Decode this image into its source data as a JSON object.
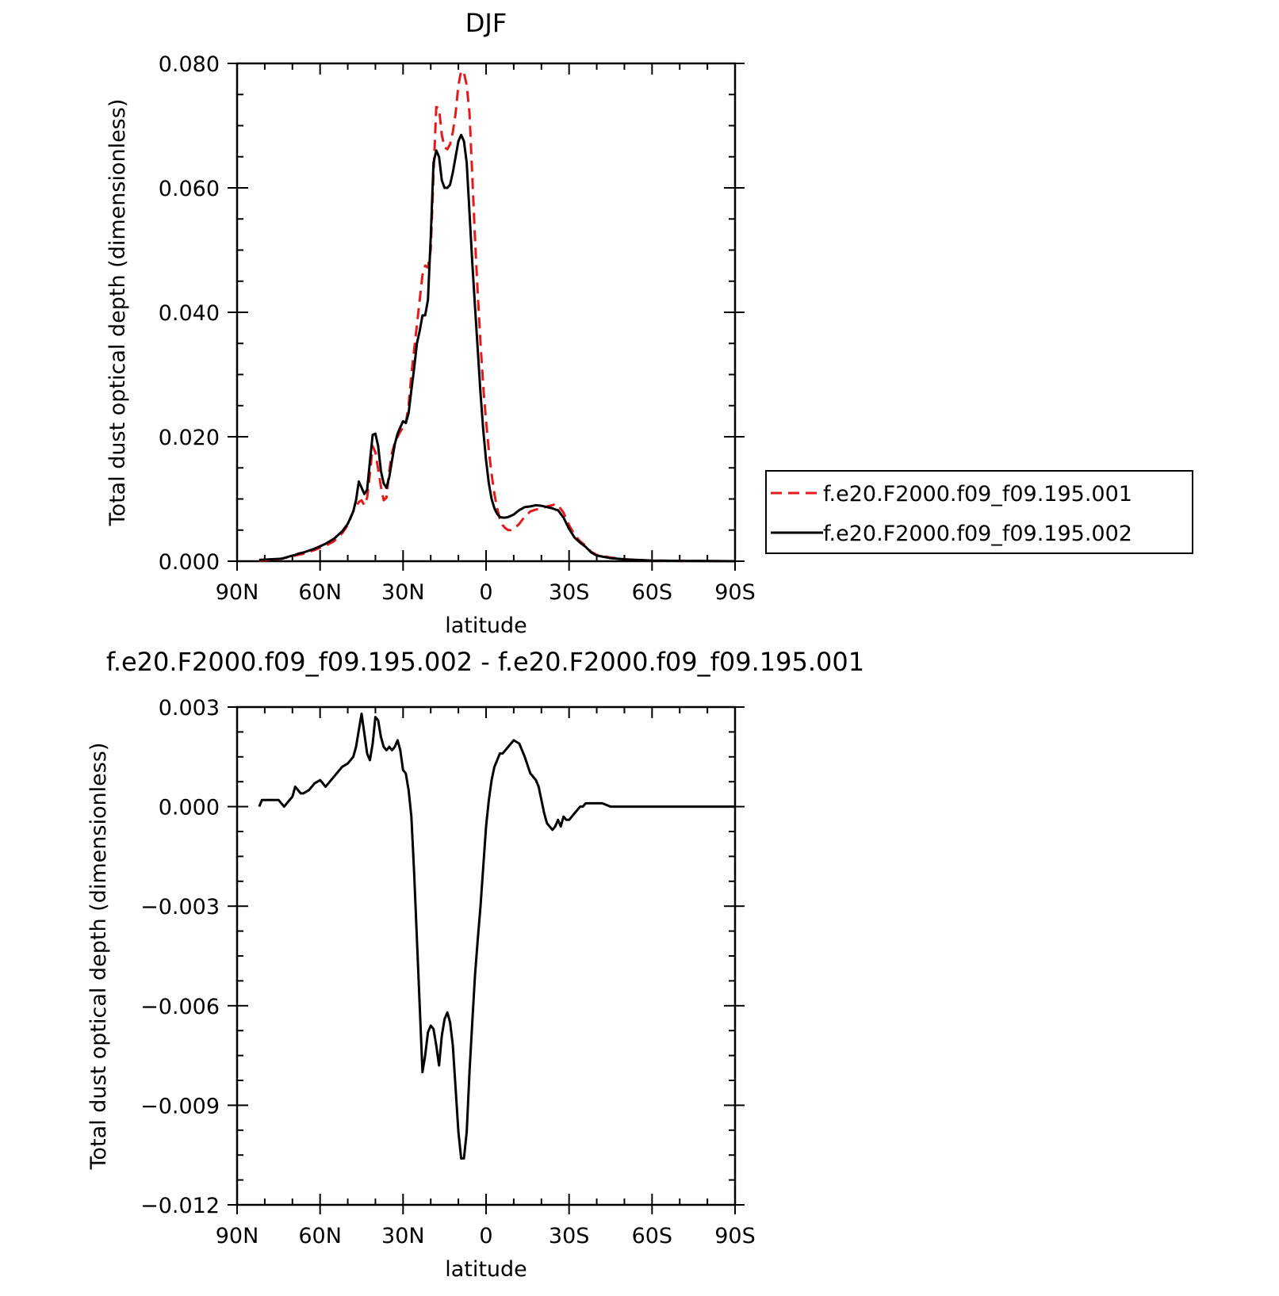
{
  "chart_data": [
    {
      "type": "line",
      "title": "DJF",
      "xlabel": "latitude",
      "ylabel": "Total dust optical depth (dimensionless)",
      "xlim": [
        90,
        -90
      ],
      "ylim": [
        0,
        0.08
      ],
      "xticks": [
        {
          "value": 90,
          "label": "90N"
        },
        {
          "value": 60,
          "label": "60N"
        },
        {
          "value": 30,
          "label": "30N"
        },
        {
          "value": 0,
          "label": "0"
        },
        {
          "value": -30,
          "label": "30S"
        },
        {
          "value": -60,
          "label": "60S"
        },
        {
          "value": -90,
          "label": "90S"
        }
      ],
      "yticks": [
        {
          "value": 0,
          "label": "0.000"
        },
        {
          "value": 0.02,
          "label": "0.020"
        },
        {
          "value": 0.04,
          "label": "0.040"
        },
        {
          "value": 0.06,
          "label": "0.060"
        },
        {
          "value": 0.08,
          "label": "0.080"
        }
      ],
      "legend": "right",
      "series": [
        {
          "name": "f.e20.F2000.f09_f09.195.001",
          "color": "#e41a1c",
          "dash": "dashed",
          "x": [
            82,
            78,
            74,
            70,
            66,
            62,
            58,
            55,
            52,
            50,
            48,
            46,
            45,
            44,
            43,
            42,
            41,
            40,
            38,
            37,
            36,
            35,
            34,
            33,
            32,
            31,
            30,
            29,
            28,
            27,
            26,
            25,
            24,
            23,
            22,
            21,
            20,
            19,
            18,
            17,
            16,
            15,
            14,
            13,
            12,
            11,
            10,
            9,
            8,
            7,
            6,
            5,
            4,
            3,
            2,
            1,
            0,
            -1,
            -2,
            -3,
            -4,
            -5,
            -6,
            -7,
            -8,
            -9,
            -10,
            -12,
            -14,
            -16,
            -18,
            -20,
            -22,
            -24,
            -25,
            -26,
            -28,
            -30,
            -32,
            -34,
            -36,
            -38,
            -40,
            -45,
            -50,
            -60,
            -70,
            -80,
            -90
          ],
          "y": [
            0.0001,
            0.0002,
            0.0004,
            0.0008,
            0.0012,
            0.0018,
            0.0025,
            0.0032,
            0.0045,
            0.0058,
            0.008,
            0.0095,
            0.0098,
            0.009,
            0.0102,
            0.014,
            0.0185,
            0.0175,
            0.012,
            0.0098,
            0.0102,
            0.0145,
            0.0175,
            0.019,
            0.02,
            0.0208,
            0.0215,
            0.0222,
            0.025,
            0.03,
            0.034,
            0.038,
            0.042,
            0.046,
            0.0475,
            0.0472,
            0.05,
            0.062,
            0.073,
            0.0728,
            0.0685,
            0.0665,
            0.0662,
            0.067,
            0.069,
            0.072,
            0.0765,
            0.0788,
            0.0785,
            0.0765,
            0.072,
            0.062,
            0.052,
            0.043,
            0.035,
            0.028,
            0.0225,
            0.0178,
            0.014,
            0.0108,
            0.0085,
            0.0068,
            0.0058,
            0.0053,
            0.005,
            0.005,
            0.0052,
            0.006,
            0.0072,
            0.008,
            0.0083,
            0.0085,
            0.0088,
            0.009,
            0.0092,
            0.009,
            0.0078,
            0.0058,
            0.0042,
            0.0032,
            0.0025,
            0.0015,
            0.001,
            0.0006,
            0.0003,
            0.0001,
            5e-05,
            2e-05,
            0.0
          ]
        },
        {
          "name": "f.e20.F2000.f09_f09.195.002",
          "color": "#000000",
          "dash": "solid",
          "x": [
            82,
            78,
            74,
            70,
            69,
            68,
            66,
            62,
            58,
            55,
            52,
            50,
            48,
            47,
            46,
            45,
            44,
            43,
            42,
            41,
            40,
            39,
            38,
            37,
            36,
            35,
            34,
            33,
            32,
            31,
            30,
            29,
            28,
            27,
            26,
            25,
            24,
            23,
            22,
            21,
            20,
            19,
            18,
            17,
            16,
            15,
            14,
            13,
            12,
            11,
            10,
            9,
            8,
            7,
            6,
            5,
            4,
            3,
            2,
            1,
            0,
            -1,
            -2,
            -3,
            -4,
            -5,
            -6,
            -7,
            -8,
            -10,
            -12,
            -14,
            -16,
            -18,
            -20,
            -22,
            -24,
            -25,
            -26,
            -28,
            -30,
            -32,
            -34,
            -36,
            -38,
            -40,
            -45,
            -50,
            -60,
            -70,
            -80,
            -90
          ],
          "y": [
            0.0002,
            0.0003,
            0.0004,
            0.0009,
            0.001,
            0.0012,
            0.0014,
            0.002,
            0.0028,
            0.0036,
            0.0048,
            0.006,
            0.008,
            0.0098,
            0.0128,
            0.0118,
            0.0108,
            0.0115,
            0.016,
            0.0203,
            0.0205,
            0.0185,
            0.0145,
            0.0125,
            0.0118,
            0.0135,
            0.0162,
            0.0188,
            0.0205,
            0.0215,
            0.0225,
            0.0222,
            0.0238,
            0.0275,
            0.031,
            0.035,
            0.037,
            0.0395,
            0.0395,
            0.042,
            0.052,
            0.064,
            0.066,
            0.065,
            0.0612,
            0.06,
            0.06,
            0.0605,
            0.0625,
            0.065,
            0.0675,
            0.0685,
            0.0675,
            0.064,
            0.056,
            0.048,
            0.041,
            0.034,
            0.027,
            0.021,
            0.0162,
            0.0125,
            0.01,
            0.0085,
            0.0076,
            0.0071,
            0.007,
            0.007,
            0.0071,
            0.0075,
            0.0082,
            0.0087,
            0.0088,
            0.009,
            0.0089,
            0.0087,
            0.0085,
            0.0083,
            0.0082,
            0.007,
            0.0052,
            0.0038,
            0.003,
            0.0023,
            0.0014,
            0.0009,
            0.0005,
            0.0003,
            0.0001,
            5e-05,
            2e-05,
            0.0
          ]
        }
      ]
    },
    {
      "type": "line",
      "title": "f.e20.F2000.f09_f09.195.002 - f.e20.F2000.f09_f09.195.001",
      "xlabel": "latitude",
      "ylabel": "Total dust optical depth (dimensionless)",
      "xlim": [
        90,
        -90
      ],
      "ylim": [
        -0.012,
        0.003
      ],
      "xticks": [
        {
          "value": 90,
          "label": "90N"
        },
        {
          "value": 60,
          "label": "60N"
        },
        {
          "value": 30,
          "label": "30N"
        },
        {
          "value": 0,
          "label": "0"
        },
        {
          "value": -30,
          "label": "30S"
        },
        {
          "value": -60,
          "label": "60S"
        },
        {
          "value": -90,
          "label": "90S"
        }
      ],
      "yticks": [
        {
          "value": 0.003,
          "label": "0.003"
        },
        {
          "value": 0,
          "label": "0.000"
        },
        {
          "value": -0.003,
          "label": "−0.003"
        },
        {
          "value": -0.006,
          "label": "−0.006"
        },
        {
          "value": -0.009,
          "label": "−0.009"
        },
        {
          "value": -0.012,
          "label": "−0.012"
        }
      ],
      "series": [
        {
          "color": "#000000",
          "dash": "solid",
          "x": [
            82,
            81,
            80,
            78,
            75,
            74,
            73,
            72,
            70,
            69,
            68,
            67,
            66,
            64,
            62,
            60,
            59,
            58,
            57,
            56,
            54,
            52,
            50,
            48,
            47,
            46,
            45,
            44,
            43,
            42,
            41,
            40,
            39,
            38,
            37,
            36,
            35,
            34,
            33,
            32,
            31,
            30,
            29,
            28,
            27,
            26,
            25,
            24,
            23,
            22,
            21,
            20,
            19,
            18,
            17,
            16,
            15,
            14,
            13,
            12,
            11,
            10,
            9,
            8,
            7,
            6,
            5,
            4,
            3,
            2,
            1,
            0,
            -1,
            -2,
            -3,
            -4,
            -5,
            -6,
            -7,
            -8,
            -10,
            -12,
            -14,
            -16,
            -18,
            -19,
            -20,
            -21,
            -22,
            -24,
            -25,
            -26,
            -27,
            -28,
            -29,
            -30,
            -31,
            -32,
            -33,
            -34,
            -35,
            -36,
            -37,
            -38,
            -40,
            -42,
            -45,
            -50,
            -60,
            -70,
            -80,
            -90
          ],
          "y": [
            0.0,
            0.0002,
            0.0002,
            0.0002,
            0.0002,
            0.0001,
            0.0,
            0.0001,
            0.0003,
            0.0006,
            0.0005,
            0.0004,
            0.0004,
            0.0005,
            0.0007,
            0.0008,
            0.0007,
            0.0006,
            0.0007,
            0.0008,
            0.001,
            0.0012,
            0.0013,
            0.0015,
            0.0018,
            0.0023,
            0.0028,
            0.0022,
            0.0016,
            0.0014,
            0.0019,
            0.0027,
            0.0026,
            0.0021,
            0.0018,
            0.0017,
            0.0018,
            0.0017,
            0.0018,
            0.002,
            0.0017,
            0.0011,
            0.001,
            0.0005,
            -0.0003,
            -0.002,
            -0.004,
            -0.006,
            -0.008,
            -0.0075,
            -0.0068,
            -0.0066,
            -0.0067,
            -0.0072,
            -0.0078,
            -0.0069,
            -0.0064,
            -0.0062,
            -0.0065,
            -0.0072,
            -0.0085,
            -0.0098,
            -0.0106,
            -0.0106,
            -0.0098,
            -0.008,
            -0.0065,
            -0.0051,
            -0.004,
            -0.003,
            -0.0018,
            -0.0006,
            0.0002,
            0.0008,
            0.0012,
            0.0014,
            0.0016,
            0.0016,
            0.0017,
            0.0018,
            0.002,
            0.0019,
            0.0015,
            0.001,
            0.0008,
            0.0006,
            0.0002,
            -0.0002,
            -0.0005,
            -0.0007,
            -0.0006,
            -0.0004,
            -0.0006,
            -0.0003,
            -0.0004,
            -0.0004,
            -0.0003,
            -0.0002,
            -0.0001,
            0.0,
            0.0,
            0.0001,
            0.0001,
            0.0001,
            0.0001,
            0.0001,
            0.0,
            0.0,
            0.0,
            0.0,
            0.0,
            0.0
          ]
        }
      ]
    }
  ]
}
